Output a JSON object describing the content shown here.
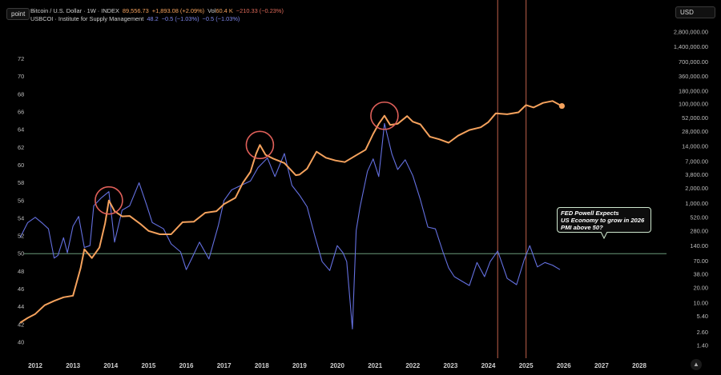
{
  "header": {
    "line1": {
      "symbol": "Bitcoin / U.S. Dollar · 1W · INDEX",
      "price": "89,556.73",
      "change": "+1,893.08 (+2.09%)",
      "vol_label": "Vol",
      "vol": "60.4 K",
      "vol_change": "−210.33 (−0.23%)"
    },
    "line2": {
      "symbol": "USBCOI · Institute for Supply Management",
      "value": "48.2",
      "change1": "−0.5 (−1.03%)",
      "change2": "−0.5 (−1.03%)"
    }
  },
  "toolbar": {
    "scale_button": "point",
    "currency_button": "USD",
    "collapse_icon": "chevron-up-icon"
  },
  "annotation": {
    "lines": [
      "FED Powell Expects",
      "US Economy to grow in 2026",
      "PMI above 50?"
    ]
  },
  "colors": {
    "bitcoin": "#f5a25d",
    "pmi": "#6470e0",
    "ref_line": "#6a9a7a",
    "vlines": "#a0503e",
    "circles": "#e0605a",
    "positive": "#f5a25d",
    "negative": "#e06a5a",
    "pmi_text": "#7d86ea"
  },
  "chart_data": {
    "type": "line",
    "x_ticks": [
      "2012",
      "2013",
      "2014",
      "2015",
      "2016",
      "2017",
      "2018",
      "2019",
      "2020",
      "2021",
      "2022",
      "2023",
      "2024",
      "2025",
      "2026",
      "2027",
      "2028"
    ],
    "left_axis": {
      "label": "",
      "ticks": [
        40,
        42,
        44,
        46,
        48,
        50,
        52,
        54,
        56,
        58,
        60,
        62,
        64,
        66,
        68,
        70,
        72
      ],
      "range": [
        39.4,
        75.2
      ]
    },
    "right_axis": {
      "label": "",
      "scale": "log",
      "ticks": [
        "2,800,000.00",
        "1,400,000.00",
        "700,000.00",
        "360,000.00",
        "180,000.00",
        "100,000.00",
        "52,000.00",
        "28,000.00",
        "14,000.00",
        "7,000.00",
        "3,800.00",
        "2,000.00",
        "1,000.00",
        "520.00",
        "280.00",
        "140.00",
        "70.00",
        "38.00",
        "20.00",
        "10.00",
        "5.40",
        "2.60",
        "1.40"
      ]
    },
    "reference_line": {
      "axis": "left",
      "value": 50
    },
    "vertical_markers": [
      2024.25,
      2025.0
    ],
    "highlight_circles": [
      {
        "x": 2013.95,
        "y": 1150
      },
      {
        "x": 2017.95,
        "y": 15000
      },
      {
        "x": 2021.25,
        "y": 58000
      }
    ],
    "series": [
      {
        "name": "Bitcoin / U.S. Dollar",
        "axis": "right",
        "x": [
          2011.6,
          2011.8,
          2012.0,
          2012.25,
          2012.5,
          2012.75,
          2013.0,
          2013.2,
          2013.3,
          2013.5,
          2013.7,
          2013.85,
          2013.95,
          2014.1,
          2014.3,
          2014.5,
          2014.8,
          2015.0,
          2015.3,
          2015.6,
          2015.9,
          2016.2,
          2016.5,
          2016.8,
          2017.0,
          2017.3,
          2017.5,
          2017.7,
          2017.85,
          2017.95,
          2018.1,
          2018.3,
          2018.6,
          2018.9,
          2019.0,
          2019.2,
          2019.45,
          2019.7,
          2019.95,
          2020.2,
          2020.5,
          2020.75,
          2020.95,
          2021.1,
          2021.25,
          2021.4,
          2021.6,
          2021.85,
          2022.0,
          2022.2,
          2022.45,
          2022.7,
          2022.95,
          2023.2,
          2023.5,
          2023.8,
          2024.0,
          2024.2,
          2024.5,
          2024.8,
          2025.0,
          2025.2,
          2025.45,
          2025.7,
          2025.95
        ],
        "y": [
          4,
          5,
          6,
          9,
          11,
          13,
          14,
          50,
          120,
          80,
          130,
          400,
          1150,
          700,
          550,
          560,
          380,
          280,
          240,
          240,
          420,
          430,
          650,
          700,
          970,
          1300,
          2600,
          4300,
          10000,
          15000,
          9500,
          8000,
          6500,
          3700,
          3800,
          5000,
          11000,
          8300,
          7300,
          6800,
          9300,
          12000,
          25000,
          40000,
          58000,
          38000,
          40000,
          57000,
          44000,
          39000,
          22000,
          19500,
          16600,
          23000,
          30000,
          34000,
          43000,
          65000,
          62000,
          68000,
          95000,
          85000,
          105000,
          115000,
          91000
        ]
      },
      {
        "name": "USBCOI · Institute for Supply Management",
        "axis": "left",
        "x": [
          2011.6,
          2011.8,
          2012.0,
          2012.2,
          2012.35,
          2012.5,
          2012.6,
          2012.75,
          2012.85,
          2013.0,
          2013.15,
          2013.3,
          2013.45,
          2013.55,
          2013.75,
          2013.95,
          2014.1,
          2014.3,
          2014.5,
          2014.75,
          2014.95,
          2015.1,
          2015.4,
          2015.6,
          2015.85,
          2016.0,
          2016.15,
          2016.35,
          2016.6,
          2016.85,
          2017.0,
          2017.2,
          2017.45,
          2017.7,
          2017.9,
          2018.15,
          2018.35,
          2018.6,
          2018.8,
          2019.0,
          2019.2,
          2019.4,
          2019.6,
          2019.8,
          2020.0,
          2020.15,
          2020.25,
          2020.4,
          2020.5,
          2020.6,
          2020.8,
          2020.95,
          2021.1,
          2021.25,
          2021.45,
          2021.6,
          2021.8,
          2022.0,
          2022.2,
          2022.4,
          2022.6,
          2022.8,
          2022.95,
          2023.1,
          2023.3,
          2023.5,
          2023.7,
          2023.9,
          2024.05,
          2024.25,
          2024.5,
          2024.75,
          2024.95,
          2025.1,
          2025.3,
          2025.5,
          2025.7,
          2025.9
        ],
        "y": [
          51.8,
          53.5,
          54.1,
          53.4,
          52.8,
          49.5,
          49.8,
          51.8,
          50.1,
          53.1,
          54.2,
          50.7,
          50.9,
          55.4,
          56.3,
          57.0,
          51.3,
          54.9,
          55.4,
          58.0,
          55.5,
          53.5,
          52.8,
          51.1,
          50.2,
          48.2,
          49.5,
          51.3,
          49.4,
          53.2,
          56.0,
          57.2,
          57.7,
          58.2,
          59.7,
          60.8,
          58.7,
          61.3,
          57.7,
          56.6,
          55.3,
          52.1,
          49.1,
          48.1,
          50.9,
          50.1,
          49.1,
          41.5,
          52.6,
          55.2,
          59.3,
          60.7,
          58.7,
          64.7,
          61.2,
          59.5,
          60.6,
          58.8,
          56.1,
          53.0,
          52.8,
          50.2,
          48.4,
          47.4,
          46.9,
          46.4,
          49.0,
          47.4,
          49.1,
          50.3,
          47.2,
          46.5,
          49.3,
          50.9,
          48.5,
          49.0,
          48.7,
          48.2
        ]
      }
    ]
  }
}
